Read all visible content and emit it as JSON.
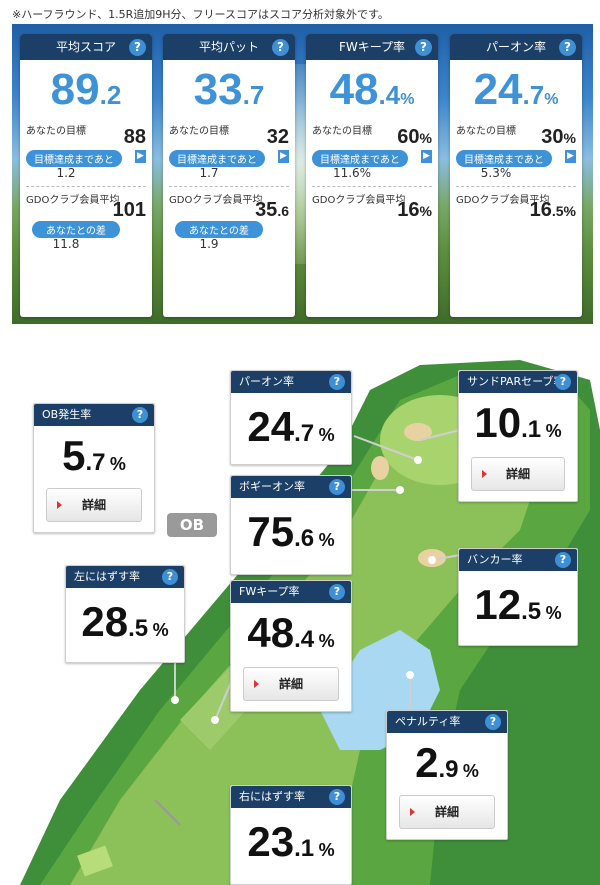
{
  "note": "※ハーフラウンド、1.5R追加9H分、フリースコアはスコア分析対象外です。",
  "summary_cards": [
    {
      "title": "平均スコア",
      "int": "89",
      "dec": ".2",
      "pct": "",
      "goal_label": "あなたの目標",
      "goal_int": "88",
      "goal_dec": "",
      "goal_pct": "",
      "pill1": "目標達成まであと",
      "sub1": "1.2",
      "avg_label": "GDOクラブ会員平均",
      "avg_int": "101",
      "avg_dec": "",
      "avg_pct": "",
      "pill2": "あなたとの差",
      "sub2": "11.8"
    },
    {
      "title": "平均パット",
      "int": "33",
      "dec": ".7",
      "pct": "",
      "goal_label": "あなたの目標",
      "goal_int": "32",
      "goal_dec": "",
      "goal_pct": "",
      "pill1": "目標達成まであと",
      "sub1": "1.7",
      "avg_label": "GDOクラブ会員平均",
      "avg_int": "35",
      "avg_dec": ".6",
      "avg_pct": "",
      "pill2": "あなたとの差",
      "sub2": "1.9"
    },
    {
      "title": "FWキープ率",
      "int": "48",
      "dec": ".4",
      "pct": "%",
      "goal_label": "あなたの目標",
      "goal_int": "60",
      "goal_dec": "",
      "goal_pct": "%",
      "pill1": "目標達成まであと",
      "sub1": "11.6%",
      "avg_label": "GDOクラブ会員平均",
      "avg_int": "16",
      "avg_dec": "",
      "avg_pct": "%",
      "pill2": "",
      "sub2": ""
    },
    {
      "title": "パーオン率",
      "int": "24",
      "dec": ".7",
      "pct": "%",
      "goal_label": "あなたの目標",
      "goal_int": "30",
      "goal_dec": "",
      "goal_pct": "%",
      "pill1": "目標達成まであと",
      "sub1": "5.3%",
      "avg_label": "GDOクラブ会員平均",
      "avg_int": "16",
      "avg_dec": ".5",
      "avg_pct": "%",
      "pill2": "",
      "sub2": ""
    }
  ],
  "ob_tag": "OB",
  "stat_boxes": {
    "ob": {
      "title": "OB発生率",
      "int": "5",
      "dec": ".7",
      "pct": "%",
      "detail": "詳細"
    },
    "paron": {
      "title": "パーオン率",
      "int": "24",
      "dec": ".7",
      "pct": "%"
    },
    "sand": {
      "title": "サンドPARセーブ率",
      "int": "10",
      "dec": ".1",
      "pct": "%",
      "detail": "詳細"
    },
    "bogey": {
      "title": "ボギーオン率",
      "int": "75",
      "dec": ".6",
      "pct": "%"
    },
    "left": {
      "title": "左にはずす率",
      "int": "28",
      "dec": ".5",
      "pct": "%"
    },
    "fw": {
      "title": "FWキープ率",
      "int": "48",
      "dec": ".4",
      "pct": "%",
      "detail": "詳細"
    },
    "bunker": {
      "title": "バンカー率",
      "int": "12",
      "dec": ".5",
      "pct": "%"
    },
    "penalty": {
      "title": "ペナルティ率",
      "int": "2",
      "dec": ".9",
      "pct": "%",
      "detail": "詳細"
    },
    "right": {
      "title": "右にはずす率",
      "int": "23",
      "dec": ".1",
      "pct": "%"
    }
  },
  "help_icon": "?",
  "colors": {
    "accent": "#3d92d8",
    "header": "#1b3f66",
    "green": "#6fae3e",
    "water": "#a9d8f2"
  }
}
